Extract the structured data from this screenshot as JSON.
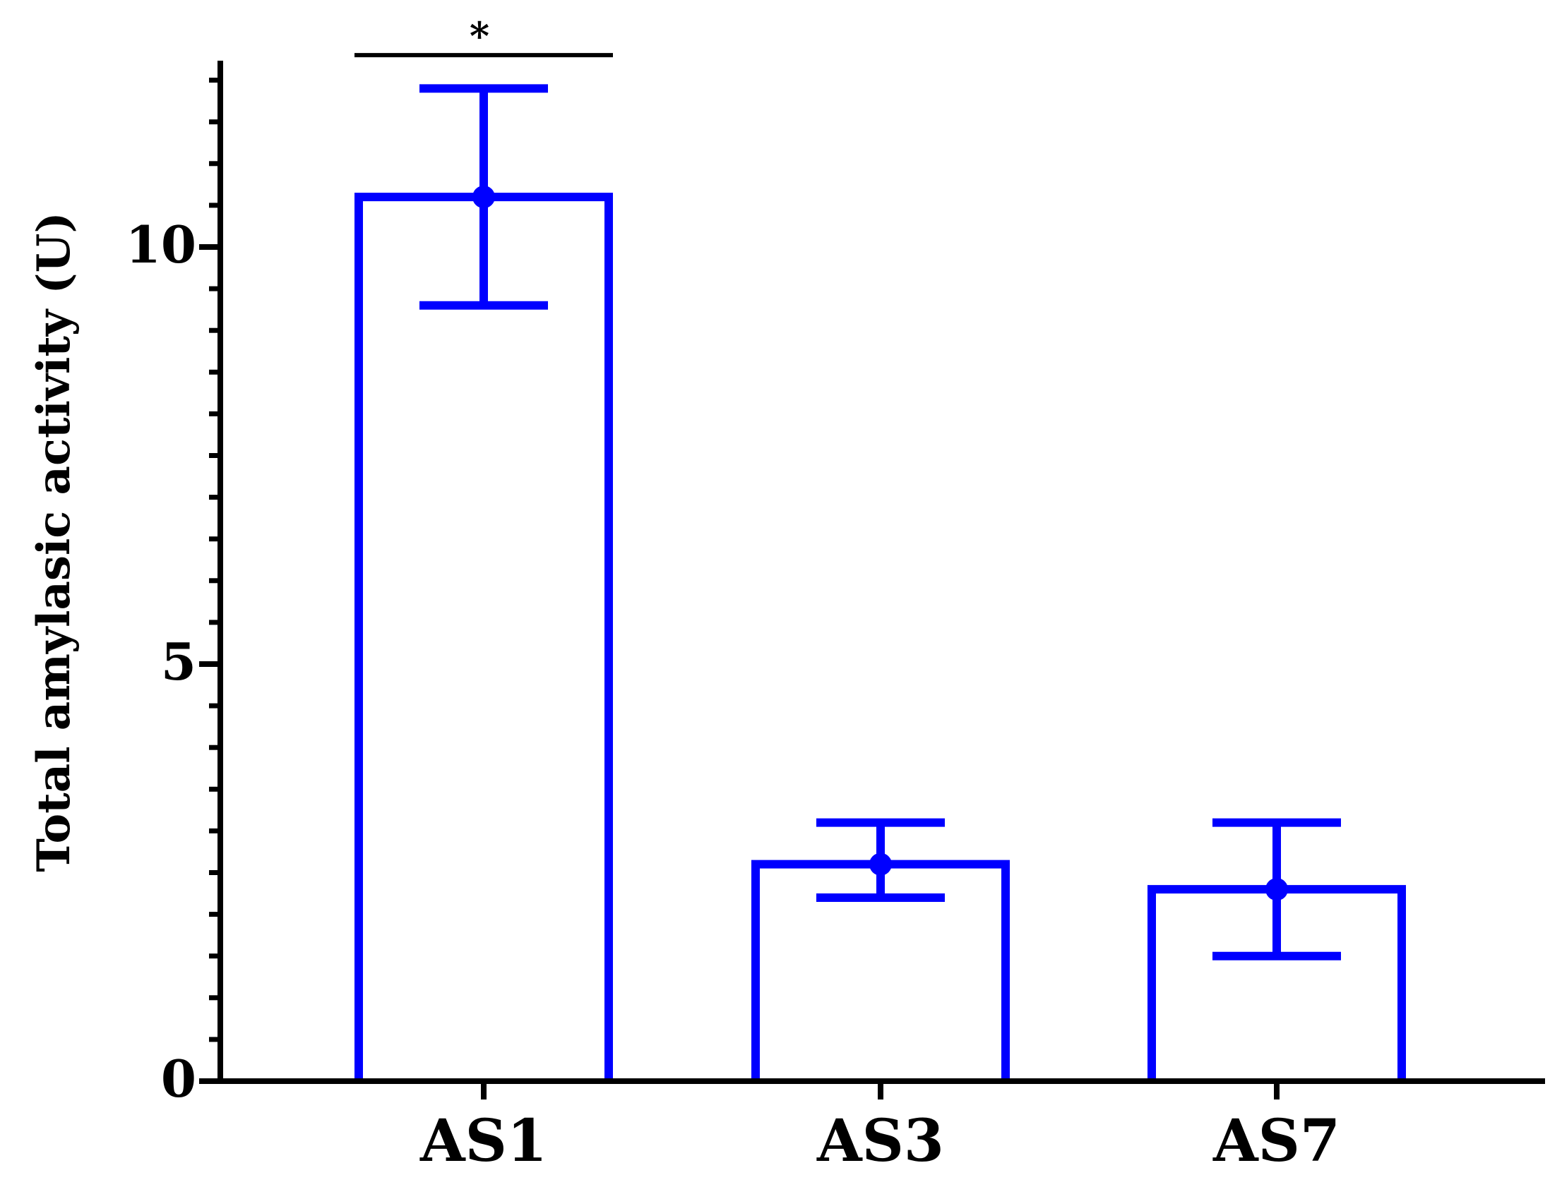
{
  "chart_data": {
    "type": "bar",
    "title": "",
    "xlabel": "",
    "ylabel": "Total amylasic activity (U)",
    "categories": [
      "AS1",
      "AS3",
      "AS7"
    ],
    "values": [
      10.6,
      2.6,
      2.3
    ],
    "error_upper": [
      11.9,
      3.1,
      3.1
    ],
    "error_lower": [
      9.3,
      2.2,
      1.5
    ],
    "ylim": [
      0,
      12.2
    ],
    "y_ticks": [
      0,
      5,
      10
    ],
    "y_minor_step": 0.5,
    "annotations": [
      {
        "text": "*",
        "from_category": "AS1",
        "to_category": "AS1",
        "y": 12.3
      }
    ],
    "colors": {
      "bar_stroke": "#0000ff",
      "bar_fill": "#ffffff",
      "axis": "#000000"
    },
    "legend": "none",
    "grid": false
  }
}
